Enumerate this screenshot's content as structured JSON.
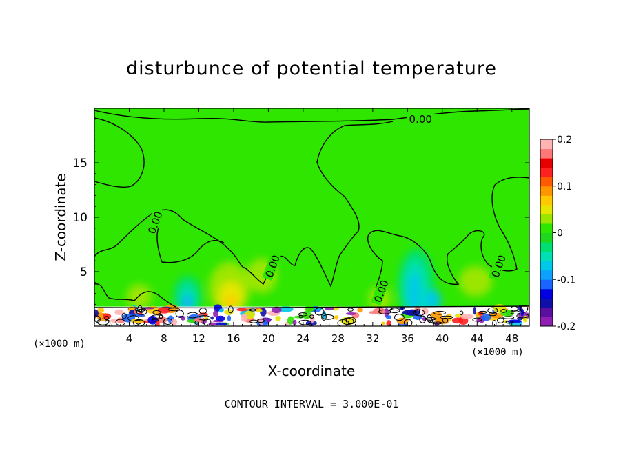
{
  "chart_data": {
    "type": "heatmap",
    "title": "disturbunce of potential temperature",
    "xlabel": "X-coordinate",
    "ylabel": "Z-coordinate",
    "x_unit": "(×1000 m)",
    "x_unit_right": "(×1000 m)",
    "xlim": [
      0,
      50
    ],
    "ylim": [
      0,
      20
    ],
    "x_ticks": [
      4,
      8,
      12,
      16,
      20,
      24,
      28,
      32,
      36,
      40,
      44,
      48
    ],
    "y_ticks": [
      5,
      10,
      15
    ],
    "footer": "CONTOUR INTERVAL = 3.000E-01",
    "contour_labels": [
      {
        "text": "0.00",
        "x": 37.5,
        "y": 19.0
      },
      {
        "text": "0.00",
        "x": 7.0,
        "y": 9.5
      },
      {
        "text": "0.00",
        "x": 20.5,
        "y": 5.5
      },
      {
        "text": "0.00",
        "x": 33.0,
        "y": 3.2
      },
      {
        "text": "0.00",
        "x": 46.5,
        "y": 5.5
      }
    ],
    "colorbar": {
      "min": -0.2,
      "max": 0.2,
      "tick_labels": [
        "0.2",
        "0.1",
        "0",
        "-0.1",
        "-0.2"
      ],
      "tick_values": [
        0.2,
        0.1,
        0,
        -0.1,
        -0.2
      ],
      "colors": [
        "#8e1fb0",
        "#5a0fa0",
        "#1010a8",
        "#0000e0",
        "#1a64ff",
        "#0ea0ff",
        "#00c8e8",
        "#00e0b4",
        "#00e070",
        "#1ed71e",
        "#2ee600",
        "#9be600",
        "#e6e600",
        "#ffc800",
        "#ff9600",
        "#ff5a00",
        "#ff2020",
        "#e60000",
        "#ff7878",
        "#ffb4b4"
      ]
    },
    "background_value": 0.0,
    "features": [
      {
        "kind": "cool_plume",
        "x": 37.0,
        "z_top": 6.5,
        "value": -0.08
      },
      {
        "kind": "cool_plume",
        "x": 10.5,
        "z_top": 4.2,
        "value": -0.06
      },
      {
        "kind": "cool_plume",
        "x": 38.5,
        "z_top": 3.5,
        "value": -0.05
      },
      {
        "kind": "warm_plume",
        "x": 15.5,
        "z_top": 5.0,
        "value": 0.06
      },
      {
        "kind": "warm_plume",
        "x": 42.0,
        "z_top": 5.0,
        "value": 0.03
      },
      {
        "kind": "warm_plume",
        "x": 33.5,
        "z_top": 3.5,
        "value": 0.03
      },
      {
        "kind": "turbulent_surface_layer",
        "x_from": 0,
        "x_to": 50,
        "z_top": 1.8
      }
    ]
  }
}
